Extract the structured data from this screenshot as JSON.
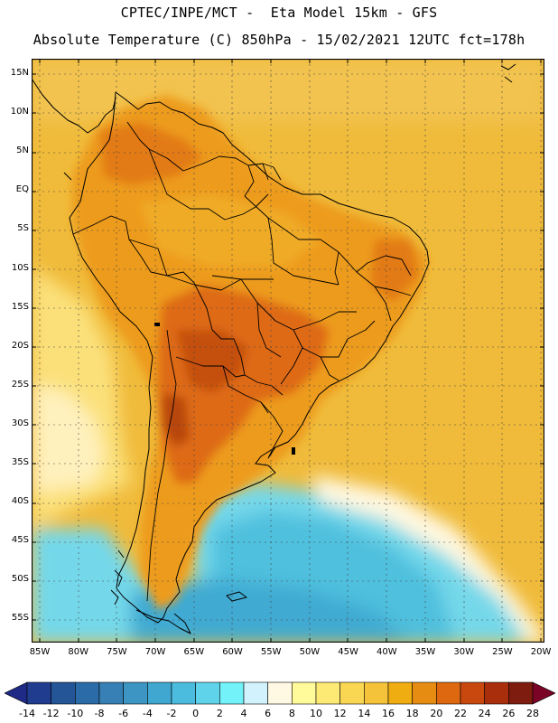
{
  "header": {
    "line1": "CPTEC/INPE/MCT -  Eta Model 15km - GFS",
    "line2": "Absolute Temperature (C) 850hPa - 15/02/2021 12UTC fct=178h"
  },
  "map": {
    "lat_labels": [
      "15N",
      "10N",
      "5N",
      "EQ",
      "5S",
      "10S",
      "15S",
      "20S",
      "25S",
      "30S",
      "35S",
      "40S",
      "45S",
      "50S",
      "55S"
    ],
    "lon_labels": [
      "85W",
      "80W",
      "75W",
      "70W",
      "65W",
      "60W",
      "55W",
      "50W",
      "45W",
      "40W",
      "35W",
      "30W",
      "25W",
      "20W"
    ],
    "extent": {
      "lon_min": -86,
      "lon_max": -19.5,
      "lat_min": -58.2,
      "lat_max": 17
    }
  },
  "colorbar": {
    "labels": [
      "-14",
      "-12",
      "-10",
      "-8",
      "-6",
      "-4",
      "-2",
      "0",
      "2",
      "4",
      "6",
      "8",
      "10",
      "12",
      "14",
      "16",
      "18",
      "20",
      "22",
      "24",
      "26",
      "28"
    ],
    "colors": [
      "#1f3c8e",
      "#245597",
      "#2b6ba8",
      "#3780b5",
      "#3c95c2",
      "#40a7d0",
      "#4cbcde",
      "#5fd3ea",
      "#73f2f9",
      "#d2f3fd",
      "#fff8e2",
      "#fffa9a",
      "#fcea74",
      "#f9d752",
      "#f4c33a",
      "#f0ad12",
      "#e78c12",
      "#de6810",
      "#c8480e",
      "#a92e0b",
      "#7e1c0f"
    ],
    "under_color": "#1e2a86",
    "over_color": "#7b0426"
  }
}
